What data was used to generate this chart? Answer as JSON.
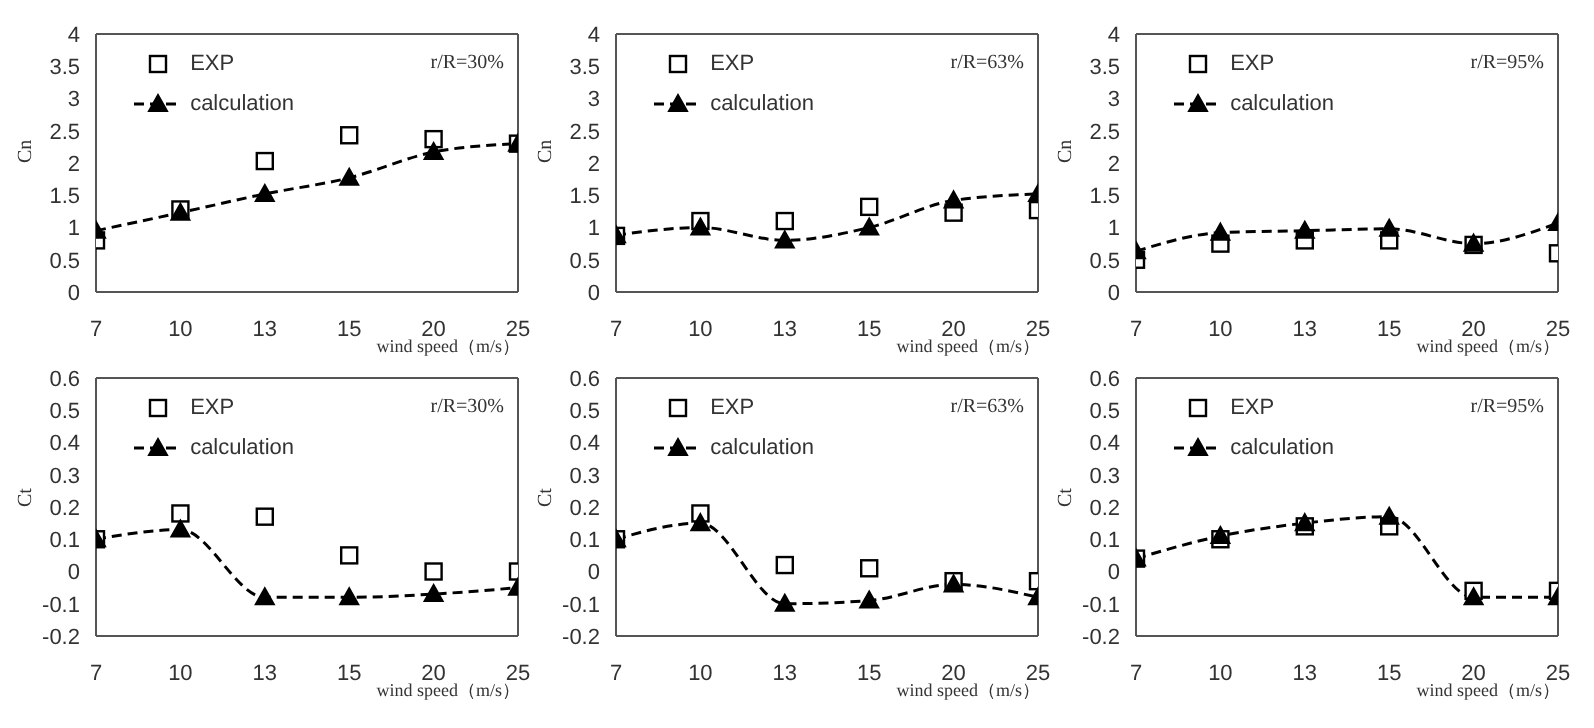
{
  "chart_data": [
    {
      "type": "line",
      "ylabel": "Cn",
      "xlabel": "wind speed（m/s）",
      "annotations": [
        "r/R=30%"
      ],
      "categories": [
        "7",
        "10",
        "13",
        "15",
        "20",
        "25"
      ],
      "ylim": [
        0,
        4
      ],
      "yticks": [
        0,
        0.5,
        1,
        1.5,
        2,
        2.5,
        3,
        3.5,
        4
      ],
      "grid": false,
      "legend": "top left",
      "series": [
        {
          "name": "EXP",
          "type": "scatter",
          "marker": "square",
          "color": "#000000",
          "values": [
            0.8,
            1.28,
            2.03,
            2.43,
            2.37,
            2.3
          ]
        },
        {
          "name": "calculation",
          "marker": "triangle",
          "line_style": "dashed",
          "color": "#000000",
          "values": [
            0.95,
            1.23,
            1.52,
            1.77,
            2.17,
            2.3
          ]
        }
      ]
    },
    {
      "type": "line",
      "ylabel": "Cn",
      "xlabel": "wind speed（m/s）",
      "annotations": [
        "r/R=63%"
      ],
      "categories": [
        "7",
        "10",
        "13",
        "15",
        "20",
        "25"
      ],
      "ylim": [
        0,
        4
      ],
      "yticks": [
        0,
        0.5,
        1,
        1.5,
        2,
        2.5,
        3,
        3.5,
        4
      ],
      "grid": false,
      "legend": "top left",
      "series": [
        {
          "name": "EXP",
          "type": "scatter",
          "marker": "square",
          "color": "#000000",
          "values": [
            0.87,
            1.1,
            1.1,
            1.32,
            1.23,
            1.27
          ]
        },
        {
          "name": "calculation",
          "marker": "triangle",
          "line_style": "dashed",
          "color": "#000000",
          "values": [
            0.88,
            1.0,
            0.8,
            1.0,
            1.42,
            1.52
          ]
        }
      ]
    },
    {
      "type": "line",
      "ylabel": "Cn",
      "xlabel": "wind speed（m/s）",
      "annotations": [
        "r/R=95%"
      ],
      "categories": [
        "7",
        "10",
        "13",
        "15",
        "20",
        "25"
      ],
      "ylim": [
        0,
        4
      ],
      "yticks": [
        0,
        0.5,
        1,
        1.5,
        2,
        2.5,
        3,
        3.5,
        4
      ],
      "grid": false,
      "legend": "top left",
      "series": [
        {
          "name": "EXP",
          "type": "scatter",
          "marker": "square",
          "color": "#000000",
          "values": [
            0.5,
            0.75,
            0.8,
            0.8,
            0.73,
            0.6
          ]
        },
        {
          "name": "calculation",
          "marker": "triangle",
          "line_style": "dashed",
          "color": "#000000",
          "values": [
            0.63,
            0.92,
            0.95,
            0.98,
            0.75,
            1.07
          ]
        }
      ]
    },
    {
      "type": "line",
      "ylabel": "Ct",
      "xlabel": "wind speed（m/s）",
      "annotations": [
        "r/R=30%"
      ],
      "categories": [
        "7",
        "10",
        "13",
        "15",
        "20",
        "25"
      ],
      "ylim": [
        -0.2,
        0.6
      ],
      "yticks": [
        -0.2,
        -0.1,
        0,
        0.1,
        0.2,
        0.3,
        0.4,
        0.5,
        0.6
      ],
      "grid": false,
      "legend": "top left",
      "series": [
        {
          "name": "EXP",
          "type": "scatter",
          "marker": "square",
          "color": "#000000",
          "values": [
            0.1,
            0.18,
            0.17,
            0.05,
            0.0,
            0.0
          ]
        },
        {
          "name": "calculation",
          "marker": "triangle",
          "line_style": "dashed",
          "color": "#000000",
          "values": [
            0.1,
            0.13,
            -0.08,
            -0.08,
            -0.07,
            -0.05
          ]
        }
      ]
    },
    {
      "type": "line",
      "ylabel": "Ct",
      "xlabel": "wind speed（m/s）",
      "annotations": [
        "r/R=63%"
      ],
      "categories": [
        "7",
        "10",
        "13",
        "15",
        "20",
        "25"
      ],
      "ylim": [
        -0.2,
        0.6
      ],
      "yticks": [
        -0.2,
        -0.1,
        0,
        0.1,
        0.2,
        0.3,
        0.4,
        0.5,
        0.6
      ],
      "grid": false,
      "legend": "top left",
      "series": [
        {
          "name": "EXP",
          "type": "scatter",
          "marker": "square",
          "color": "#000000",
          "values": [
            0.1,
            0.18,
            0.02,
            0.01,
            -0.03,
            -0.03
          ]
        },
        {
          "name": "calculation",
          "marker": "triangle",
          "line_style": "dashed",
          "color": "#000000",
          "values": [
            0.1,
            0.15,
            -0.1,
            -0.09,
            -0.04,
            -0.08
          ]
        }
      ]
    },
    {
      "type": "line",
      "ylabel": "Ct",
      "xlabel": "wind speed（m/s）",
      "annotations": [
        "r/R=95%"
      ],
      "categories": [
        "7",
        "10",
        "13",
        "15",
        "20",
        "25"
      ],
      "ylim": [
        -0.2,
        0.6
      ],
      "yticks": [
        -0.2,
        -0.1,
        0,
        0.1,
        0.2,
        0.3,
        0.4,
        0.5,
        0.6
      ],
      "grid": false,
      "legend": "top left",
      "series": [
        {
          "name": "EXP",
          "type": "scatter",
          "marker": "square",
          "color": "#000000",
          "values": [
            0.04,
            0.1,
            0.14,
            0.14,
            -0.06,
            -0.06
          ]
        },
        {
          "name": "calculation",
          "marker": "triangle",
          "line_style": "dashed",
          "color": "#000000",
          "values": [
            0.04,
            0.11,
            0.15,
            0.17,
            -0.08,
            -0.08
          ]
        }
      ]
    }
  ]
}
